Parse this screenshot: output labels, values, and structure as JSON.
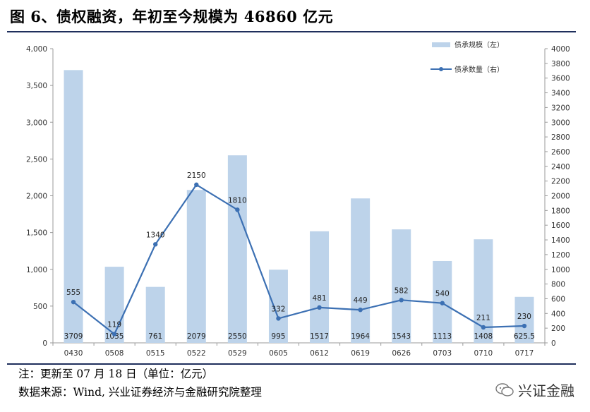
{
  "header": {
    "title": "图 6、债权融资，年初至今规模为 46860 亿元"
  },
  "footer": {
    "note": "注：更新至 07 月 18 日（单位：亿元）",
    "source": "数据来源：Wind, 兴业证券经济与金融研究院整理",
    "brand": "兴证金融",
    "brand_icon": "wechat-icon"
  },
  "chart_data": {
    "type": "bar+line",
    "categories": [
      "0430",
      "0508",
      "0515",
      "0522",
      "0529",
      "0605",
      "0612",
      "0619",
      "0626",
      "0703",
      "0710",
      "0717"
    ],
    "series": [
      {
        "name": "债承规模（左）",
        "type": "bar",
        "axis": "left",
        "values": [
          3709,
          1035,
          761,
          2079,
          2550,
          995,
          1517,
          1964,
          1543,
          1113,
          1408,
          625.5
        ],
        "labels": [
          "3709",
          "1035",
          "761",
          "2079",
          "2550",
          "995",
          "1517",
          "1964",
          "1543",
          "1113",
          "1408",
          "625.5"
        ],
        "color": "#bdd3ea"
      },
      {
        "name": "债承数量（右）",
        "type": "line",
        "axis": "right",
        "values": [
          555,
          119,
          1340,
          2150,
          1810,
          332,
          481,
          449,
          582,
          540,
          211,
          230
        ],
        "labels": [
          "555",
          "119",
          "1340",
          "2150",
          "1810",
          "332",
          "481",
          "449",
          "582",
          "540",
          "211",
          "230"
        ],
        "color": "#3c70b3"
      }
    ],
    "y_left": {
      "lim": [
        0,
        4000
      ],
      "ticks": [
        "0",
        "500",
        "1,000",
        "1,500",
        "2,000",
        "2,500",
        "3,000",
        "3,500",
        "4,000"
      ]
    },
    "y_right": {
      "lim": [
        0,
        4000
      ],
      "ticks": [
        "0",
        "200",
        "400",
        "600",
        "800",
        "1000",
        "1200",
        "1400",
        "1600",
        "1800",
        "2000",
        "2200",
        "2400",
        "2600",
        "2800",
        "3000",
        "3200",
        "3400",
        "3600",
        "3800",
        "4000"
      ]
    },
    "legend_placement": "top-right",
    "grid": false
  }
}
